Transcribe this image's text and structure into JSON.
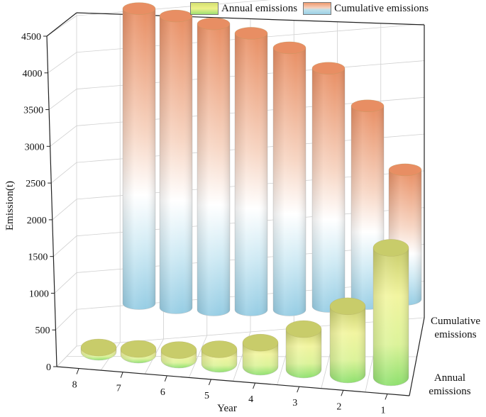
{
  "chart_data": {
    "type": "bar3d",
    "title": "",
    "ylabel": "Emission(t)",
    "xlabel": "Year",
    "ylim": [
      0,
      4500
    ],
    "yticks": [
      0,
      500,
      1000,
      1500,
      2000,
      2500,
      3000,
      3500,
      4000,
      4500
    ],
    "categories": [
      "1",
      "2",
      "3",
      "4",
      "5",
      "6",
      "7",
      "8"
    ],
    "depth_labels": [
      "Annual emissions",
      "Cumulative emissions"
    ],
    "series": [
      {
        "name": "Annual emissions",
        "values": [
          2050,
          1080,
          640,
          380,
          230,
          150,
          90,
          50
        ]
      },
      {
        "name": "Cumulative emissions",
        "values": [
          2050,
          3130,
          3770,
          4150,
          4380,
          4530,
          4620,
          4670
        ]
      }
    ]
  },
  "legend": {
    "annual_label": "Annual emissions",
    "cumulative_label": "Cumulative emissions"
  },
  "colors": {
    "annual_top": "#c8cc6a",
    "annual_light": "#f2f5a0",
    "annual_bottom": "#8ee06e",
    "cum_top": "#e88e63",
    "cum_mid": "#ffffff",
    "cum_bottom": "#96cde4"
  }
}
